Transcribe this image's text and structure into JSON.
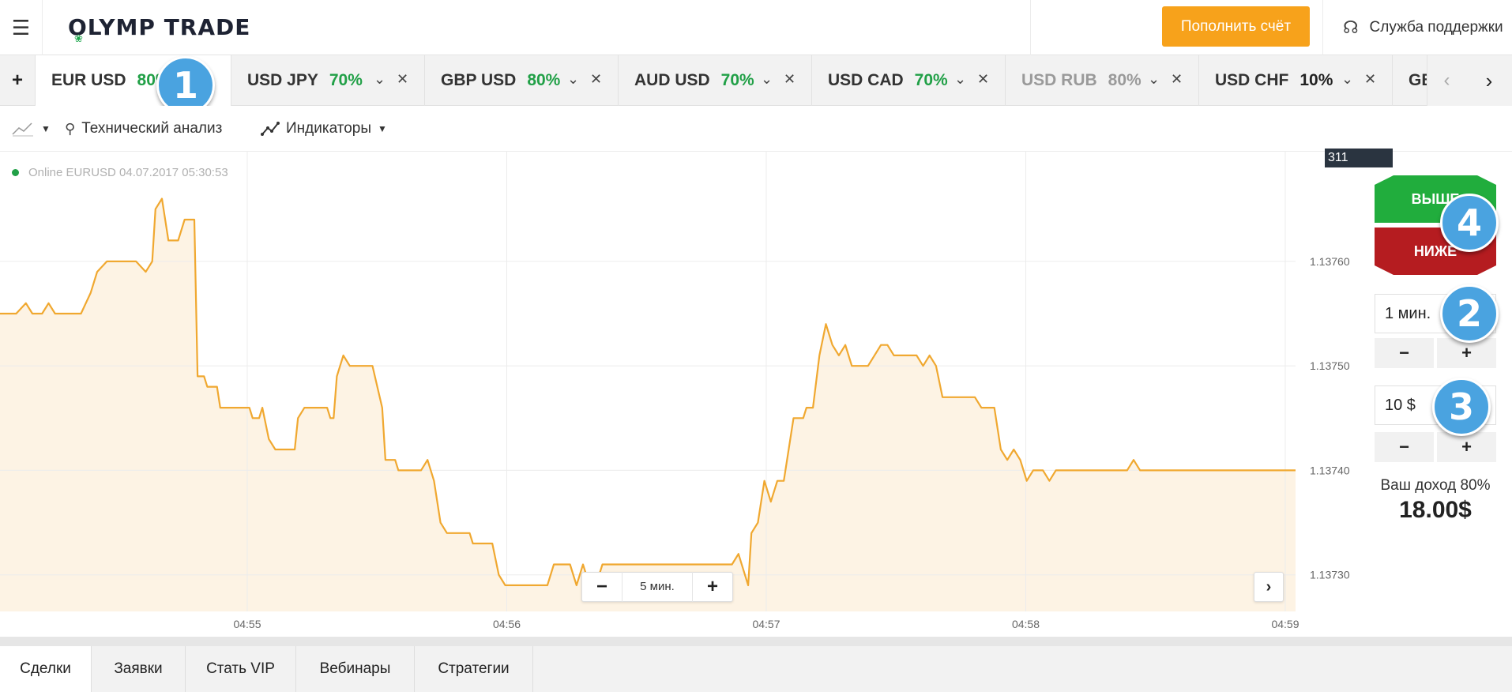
{
  "header": {
    "menu_icon": "hamburger-icon",
    "logo_text": "OLYMP TRADE",
    "deposit_label": "Пополнить счёт",
    "support_label": "Служба поддержки",
    "accent_color": "#f7a21b"
  },
  "tabs": [
    {
      "pair": "EUR USD",
      "payout": "80%",
      "state": "active"
    },
    {
      "pair": "USD JPY",
      "payout": "70%",
      "state": "normal"
    },
    {
      "pair": "GBP USD",
      "payout": "80%",
      "state": "normal"
    },
    {
      "pair": "AUD USD",
      "payout": "70%",
      "state": "normal"
    },
    {
      "pair": "USD CAD",
      "payout": "70%",
      "state": "normal"
    },
    {
      "pair": "USD RUB",
      "payout": "80%",
      "state": "disabled"
    },
    {
      "pair": "USD CHF",
      "payout": "10%",
      "state": "normal"
    },
    {
      "pair": "GBP",
      "payout": "",
      "state": "partial"
    }
  ],
  "toolbar": {
    "technical_analysis": "Технический анализ",
    "indicators": "Индикаторы"
  },
  "chart_status": {
    "online_text": "Online EURUSD 04.07.2017 05:30:53",
    "price_tag": "311"
  },
  "zoom": {
    "label": "5 мин.",
    "minus": "−",
    "plus": "+"
  },
  "trade_panel": {
    "up_label": "ВЫШЕ",
    "down_label": "НИЖЕ",
    "up_color": "#21ad3d",
    "down_color": "#b51c20",
    "duration": "1 мин.",
    "amount": "10 $",
    "minus": "−",
    "plus": "+",
    "income_label": "Ваш доход 80%",
    "income_value": "18.00$"
  },
  "annotations": [
    "1",
    "2",
    "3",
    "4"
  ],
  "bottom_tabs": [
    "Сделки",
    "Заявки",
    "Стать VIP",
    "Вебинары",
    "Стратегии"
  ],
  "chart_data": {
    "type": "area",
    "line_color": "#f0a830",
    "fill_color": "#fdf3e4",
    "xlabel": "",
    "ylabel": "",
    "x_ticks": [
      "04:55",
      "04:56",
      "04:57",
      "04:58",
      "04:59"
    ],
    "y_ticks": [
      "1.13730",
      "1.13740",
      "1.13750",
      "1.13760"
    ],
    "ylim": [
      1.137265,
      1.137705
    ],
    "grid": true,
    "series": [
      {
        "values": [
          [
            4.905,
            1.13755
          ],
          [
            4.91,
            1.13755
          ],
          [
            4.913,
            1.13756
          ],
          [
            4.915,
            1.13755
          ],
          [
            4.918,
            1.13755
          ],
          [
            4.92,
            1.13756
          ],
          [
            4.922,
            1.13755
          ],
          [
            4.93,
            1.13755
          ],
          [
            4.933,
            1.13757
          ],
          [
            4.935,
            1.13759
          ],
          [
            4.938,
            1.1376
          ],
          [
            4.947,
            1.1376
          ],
          [
            4.95,
            1.13759
          ],
          [
            4.952,
            1.1376
          ],
          [
            4.953,
            1.13765
          ],
          [
            4.955,
            1.13766
          ],
          [
            4.957,
            1.13762
          ],
          [
            4.96,
            1.13762
          ],
          [
            4.962,
            1.13764
          ],
          [
            4.965,
            1.13764
          ],
          [
            4.966,
            1.13749
          ],
          [
            4.968,
            1.13749
          ],
          [
            4.969,
            1.13748
          ],
          [
            4.972,
            1.13748
          ],
          [
            4.973,
            1.13746
          ],
          [
            4.982,
            1.13746
          ],
          [
            4.983,
            1.13745
          ],
          [
            4.985,
            1.13745
          ],
          [
            4.986,
            1.13746
          ],
          [
            4.988,
            1.13743
          ],
          [
            4.99,
            1.13742
          ],
          [
            4.996,
            1.13742
          ],
          [
            4.997,
            1.13745
          ],
          [
            4.999,
            1.13746
          ],
          [
            5.006,
            1.13746
          ],
          [
            5.007,
            1.13745
          ],
          [
            5.008,
            1.13745
          ],
          [
            5.009,
            1.13749
          ],
          [
            5.011,
            1.13751
          ],
          [
            5.013,
            1.1375
          ],
          [
            5.02,
            1.1375
          ],
          [
            5.023,
            1.13746
          ],
          [
            5.024,
            1.13741
          ],
          [
            5.027,
            1.13741
          ],
          [
            5.028,
            1.1374
          ],
          [
            5.035,
            1.1374
          ],
          [
            5.037,
            1.13741
          ],
          [
            5.039,
            1.13739
          ],
          [
            5.041,
            1.13735
          ],
          [
            5.043,
            1.13734
          ],
          [
            5.05,
            1.13734
          ],
          [
            5.051,
            1.13733
          ],
          [
            5.057,
            1.13733
          ],
          [
            5.059,
            1.1373
          ],
          [
            5.061,
            1.13729
          ],
          [
            5.074,
            1.13729
          ],
          [
            5.076,
            1.13731
          ],
          [
            5.081,
            1.13731
          ],
          [
            5.083,
            1.13729
          ],
          [
            5.085,
            1.13731
          ],
          [
            5.087,
            1.13729
          ],
          [
            5.089,
            1.13729
          ],
          [
            5.091,
            1.13731
          ],
          [
            5.131,
            1.13731
          ],
          [
            5.133,
            1.13732
          ],
          [
            5.136,
            1.13729
          ],
          [
            5.137,
            1.13734
          ],
          [
            5.139,
            1.13735
          ],
          [
            5.141,
            1.13739
          ],
          [
            5.143,
            1.13737
          ],
          [
            5.145,
            1.13739
          ],
          [
            5.147,
            1.13739
          ],
          [
            5.149,
            1.13743
          ],
          [
            5.15,
            1.13745
          ],
          [
            5.153,
            1.13745
          ],
          [
            5.154,
            1.13746
          ],
          [
            5.156,
            1.13746
          ],
          [
            5.158,
            1.13751
          ],
          [
            5.16,
            1.13754
          ],
          [
            5.162,
            1.13752
          ],
          [
            5.164,
            1.13751
          ],
          [
            5.166,
            1.13752
          ],
          [
            5.168,
            1.1375
          ],
          [
            5.173,
            1.1375
          ],
          [
            5.177,
            1.13752
          ],
          [
            5.179,
            1.13752
          ],
          [
            5.181,
            1.13751
          ],
          [
            5.188,
            1.13751
          ],
          [
            5.19,
            1.1375
          ],
          [
            5.192,
            1.13751
          ],
          [
            5.194,
            1.1375
          ],
          [
            5.196,
            1.13747
          ],
          [
            5.206,
            1.13747
          ],
          [
            5.208,
            1.13746
          ],
          [
            5.212,
            1.13746
          ],
          [
            5.214,
            1.13742
          ],
          [
            5.216,
            1.13741
          ],
          [
            5.218,
            1.13742
          ],
          [
            5.22,
            1.13741
          ],
          [
            5.222,
            1.13739
          ],
          [
            5.224,
            1.1374
          ],
          [
            5.227,
            1.1374
          ],
          [
            5.229,
            1.13739
          ],
          [
            5.231,
            1.1374
          ],
          [
            5.253,
            1.1374
          ],
          [
            5.255,
            1.13741
          ],
          [
            5.257,
            1.1374
          ],
          [
            5.305,
            1.1374
          ]
        ]
      }
    ]
  }
}
